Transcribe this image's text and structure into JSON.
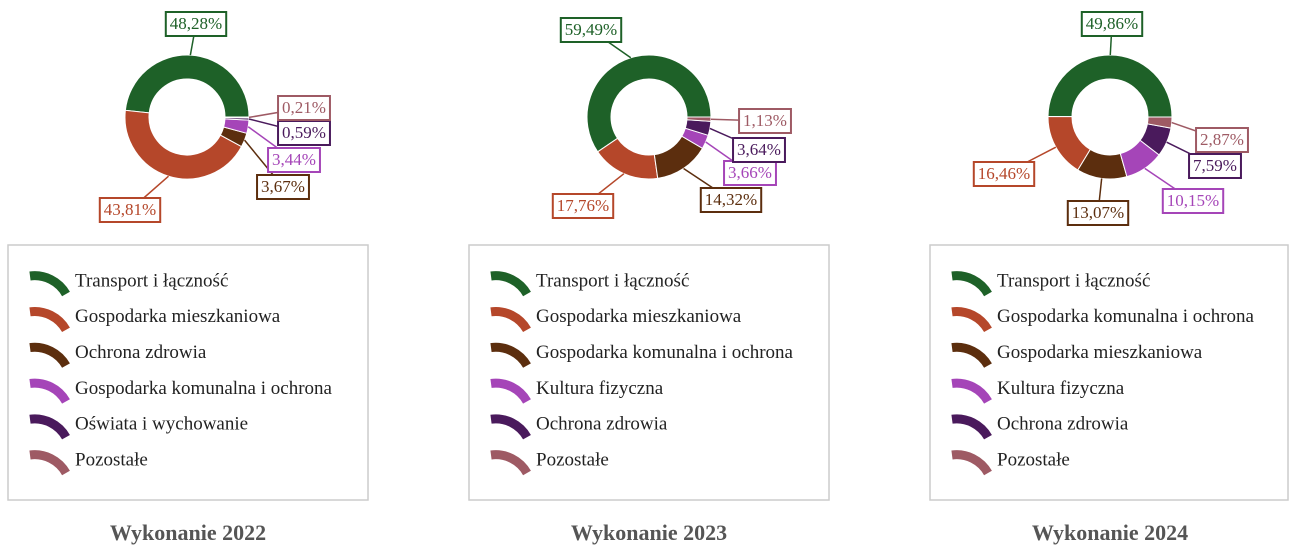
{
  "chart_data": [
    {
      "type": "pie",
      "title": "Wykonanie 2022",
      "categories": [
        "Transport i łączność",
        "Gospodarka mieszkaniowa",
        "Ochrona zdrowia",
        "Gospodarka komunalna i ochrona",
        "Oświata i wychowanie",
        "Pozostałe"
      ],
      "values": [
        48.28,
        43.81,
        3.67,
        3.44,
        0.59,
        0.21
      ],
      "value_labels": [
        "48,28%",
        "43,81%",
        "3,67%",
        "3,44%",
        "0,59%",
        "0,21%"
      ],
      "colors": [
        "#1e6128",
        "#b5472a",
        "#5c2e0e",
        "#a545b8",
        "#4a1a5c",
        "#9e5a64"
      ]
    },
    {
      "type": "pie",
      "title": "Wykonanie 2023",
      "categories": [
        "Transport i łączność",
        "Gospodarka mieszkaniowa",
        "Gospodarka komunalna i ochrona",
        "Kultura fizyczna",
        "Ochrona zdrowia",
        "Pozostałe"
      ],
      "values": [
        59.49,
        17.76,
        14.32,
        3.66,
        3.64,
        1.13
      ],
      "value_labels": [
        "59,49%",
        "17,76%",
        "14,32%",
        "3,66%",
        "3,64%",
        "1,13%"
      ],
      "colors": [
        "#1e6128",
        "#b5472a",
        "#5c2e0e",
        "#a545b8",
        "#4a1a5c",
        "#9e5a64"
      ]
    },
    {
      "type": "pie",
      "title": "Wykonanie 2024",
      "categories": [
        "Transport i łączność",
        "Gospodarka komunalna i ochrona",
        "Gospodarka mieszkaniowa",
        "Kultura fizyczna",
        "Ochrona zdrowia",
        "Pozostałe"
      ],
      "values": [
        49.86,
        16.46,
        13.07,
        10.15,
        7.59,
        2.87
      ],
      "value_labels": [
        "49,86%",
        "16,46%",
        "13,07%",
        "10,15%",
        "7,59%",
        "2,87%"
      ],
      "colors": [
        "#1e6128",
        "#b5472a",
        "#5c2e0e",
        "#a545b8",
        "#4a1a5c",
        "#9e5a64"
      ]
    }
  ]
}
